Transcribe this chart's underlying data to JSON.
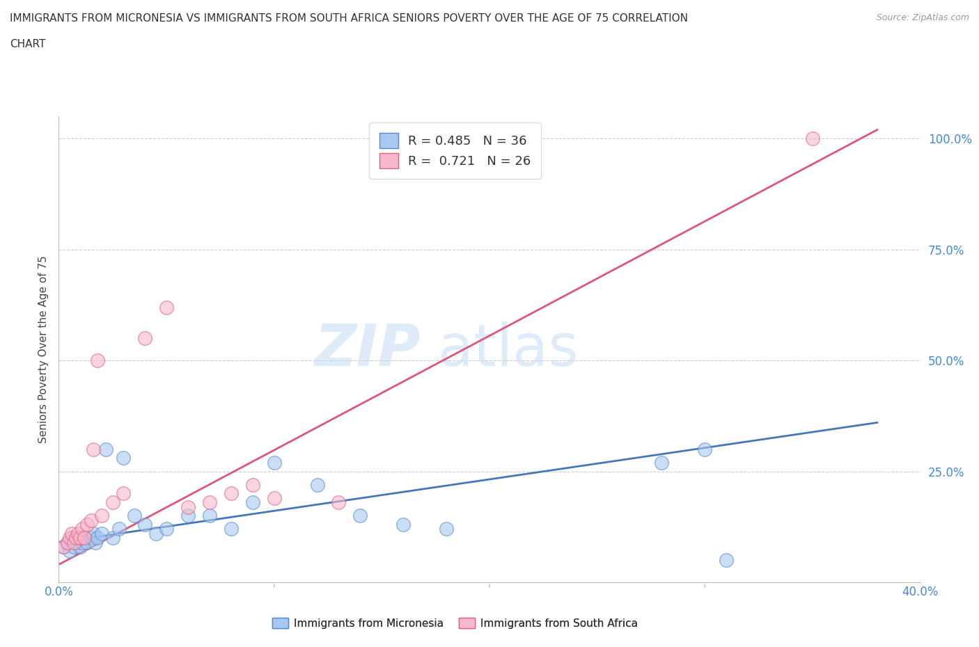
{
  "title_line1": "IMMIGRANTS FROM MICRONESIA VS IMMIGRANTS FROM SOUTH AFRICA SENIORS POVERTY OVER THE AGE OF 75 CORRELATION",
  "title_line2": "CHART",
  "source": "Source: ZipAtlas.com",
  "ylabel": "Seniors Poverty Over the Age of 75",
  "xlim": [
    0.0,
    0.4
  ],
  "ylim": [
    0.0,
    1.05
  ],
  "xticks": [
    0.0,
    0.1,
    0.2,
    0.3,
    0.4
  ],
  "xticklabels": [
    "0.0%",
    "",
    "",
    "",
    "40.0%"
  ],
  "yticks": [
    0.25,
    0.5,
    0.75,
    1.0
  ],
  "yticklabels": [
    "25.0%",
    "50.0%",
    "75.0%",
    "100.0%"
  ],
  "micronesia_color": "#a8c8f0",
  "micronesia_edge": "#5588cc",
  "south_africa_color": "#f8b8cc",
  "south_africa_edge": "#e06080",
  "trend_micronesia_color": "#4477bb",
  "trend_south_africa_color": "#dd5577",
  "R_micronesia": 0.485,
  "N_micronesia": 36,
  "R_south_africa": 0.721,
  "N_south_africa": 26,
  "watermark_zip": "ZIP",
  "watermark_atlas": "atlas",
  "background_color": "#ffffff",
  "grid_color": "#cccccc",
  "micronesia_x": [
    0.002,
    0.004,
    0.005,
    0.006,
    0.007,
    0.008,
    0.009,
    0.01,
    0.011,
    0.012,
    0.013,
    0.015,
    0.016,
    0.017,
    0.018,
    0.02,
    0.022,
    0.025,
    0.028,
    0.03,
    0.035,
    0.04,
    0.045,
    0.05,
    0.06,
    0.07,
    0.08,
    0.09,
    0.1,
    0.12,
    0.14,
    0.16,
    0.18,
    0.28,
    0.3,
    0.31
  ],
  "micronesia_y": [
    0.08,
    0.09,
    0.07,
    0.1,
    0.08,
    0.09,
    0.1,
    0.08,
    0.09,
    0.1,
    0.09,
    0.1,
    0.11,
    0.09,
    0.1,
    0.11,
    0.3,
    0.1,
    0.12,
    0.28,
    0.15,
    0.13,
    0.11,
    0.12,
    0.15,
    0.15,
    0.12,
    0.18,
    0.27,
    0.22,
    0.15,
    0.13,
    0.12,
    0.27,
    0.3,
    0.05
  ],
  "south_africa_x": [
    0.002,
    0.004,
    0.005,
    0.006,
    0.007,
    0.008,
    0.009,
    0.01,
    0.011,
    0.012,
    0.013,
    0.015,
    0.016,
    0.018,
    0.02,
    0.025,
    0.03,
    0.04,
    0.05,
    0.06,
    0.07,
    0.08,
    0.09,
    0.1,
    0.13,
    0.35
  ],
  "south_africa_y": [
    0.08,
    0.09,
    0.1,
    0.11,
    0.09,
    0.1,
    0.11,
    0.1,
    0.12,
    0.1,
    0.13,
    0.14,
    0.3,
    0.5,
    0.15,
    0.18,
    0.2,
    0.55,
    0.62,
    0.17,
    0.18,
    0.2,
    0.22,
    0.19,
    0.18,
    1.0
  ],
  "trend_sa_x0": 0.0,
  "trend_sa_y0": 0.04,
  "trend_sa_x1": 0.38,
  "trend_sa_y1": 1.02,
  "trend_mic_x0": 0.0,
  "trend_mic_y0": 0.09,
  "trend_mic_x1": 0.38,
  "trend_mic_y1": 0.36
}
